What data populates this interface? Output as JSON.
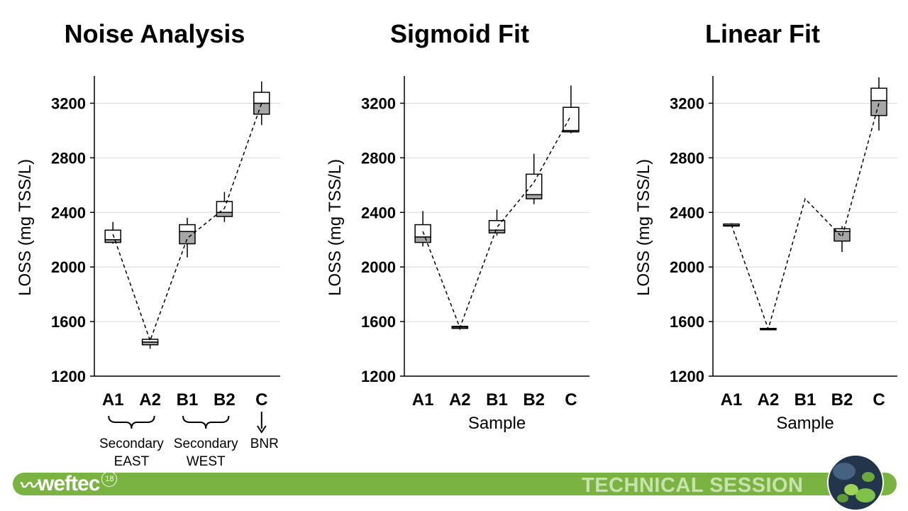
{
  "colors": {
    "accent": "#7ab342",
    "box_lower": "#a6a6a6",
    "box_upper": "#ffffff",
    "gridline": "#d9d9d9"
  },
  "chart_data": [
    {
      "type": "box",
      "title": "Noise Analysis",
      "ylabel": "LOSS (mg TSS/L)",
      "xlabel": "",
      "ylim": [
        1200,
        3400
      ],
      "yticks": [
        1200,
        1600,
        2000,
        2400,
        2800,
        3200
      ],
      "grid": true,
      "categories": [
        "A1",
        "A2",
        "B1",
        "B2",
        "C"
      ],
      "boxes": [
        {
          "min": 2170,
          "q1": 2180,
          "median": 2200,
          "q3": 2270,
          "max": 2330,
          "mean": 2240
        },
        {
          "min": 1400,
          "q1": 1430,
          "median": 1450,
          "q3": 1470,
          "max": 1480,
          "mean": 1460
        },
        {
          "min": 2070,
          "q1": 2170,
          "median": 2260,
          "q3": 2310,
          "max": 2360,
          "mean": 2210
        },
        {
          "min": 2330,
          "q1": 2370,
          "median": 2400,
          "q3": 2480,
          "max": 2550,
          "mean": 2430
        },
        {
          "min": 3040,
          "q1": 3120,
          "median": 3200,
          "q3": 3280,
          "max": 3360,
          "mean": 3200
        }
      ],
      "group_labels": [
        {
          "text": "Secondary\nEAST",
          "from": 0,
          "to": 1,
          "marker": "brace"
        },
        {
          "text": "Secondary\nWEST",
          "from": 2,
          "to": 3,
          "marker": "brace"
        },
        {
          "text": "BNR",
          "from": 4,
          "to": 4,
          "marker": "arrow"
        }
      ]
    },
    {
      "type": "box",
      "title": "Sigmoid Fit",
      "ylabel": "LOSS (mg TSS/L)",
      "xlabel": "Sample",
      "ylim": [
        1200,
        3400
      ],
      "yticks": [
        1200,
        1600,
        2000,
        2400,
        2800,
        3200
      ],
      "grid": true,
      "categories": [
        "A1",
        "A2",
        "B1",
        "B2",
        "C"
      ],
      "boxes": [
        {
          "min": 2150,
          "q1": 2180,
          "median": 2220,
          "q3": 2310,
          "max": 2410,
          "mean": 2260
        },
        {
          "min": 1540,
          "q1": 1550,
          "median": 1560,
          "q3": 1565,
          "max": 1570,
          "mean": 1555
        },
        {
          "min": 2230,
          "q1": 2250,
          "median": 2270,
          "q3": 2340,
          "max": 2420,
          "mean": 2290
        },
        {
          "min": 2460,
          "q1": 2500,
          "median": 2530,
          "q3": 2680,
          "max": 2830,
          "mean": 2620
        },
        {
          "min": 2980,
          "q1": 2990,
          "median": 3000,
          "q3": 3170,
          "max": 3330,
          "mean": 3110
        }
      ],
      "group_labels": []
    },
    {
      "type": "box",
      "title": "Linear Fit",
      "ylabel": "LOSS (mg TSS/L)",
      "xlabel": "Sample",
      "ylim": [
        1200,
        3400
      ],
      "yticks": [
        1200,
        1600,
        2000,
        2400,
        2800,
        3200
      ],
      "grid": true,
      "categories": [
        "A1",
        "A2",
        "B1",
        "B2",
        "C"
      ],
      "boxes": [
        {
          "min": 2300,
          "q1": 2300,
          "median": 2305,
          "q3": 2315,
          "max": 2320,
          "mean": 2310
        },
        {
          "min": 1540,
          "q1": 1540,
          "median": 1545,
          "q3": 1550,
          "max": 1555,
          "mean": 1545
        },
        {
          "min": 2500,
          "q1": 2500,
          "median": 2500,
          "q3": 2500,
          "max": 2500,
          "mean": 2500,
          "no_box": true
        },
        {
          "min": 2110,
          "q1": 2190,
          "median": 2260,
          "q3": 2280,
          "max": 2300,
          "mean": 2220
        },
        {
          "min": 3000,
          "q1": 3110,
          "median": 3220,
          "q3": 3310,
          "max": 3390,
          "mean": 3200
        }
      ],
      "group_labels": []
    }
  ],
  "footer": {
    "logo_text": "weftec",
    "logo_superscript": "18",
    "session_label": "TECHNICAL SESSION"
  }
}
